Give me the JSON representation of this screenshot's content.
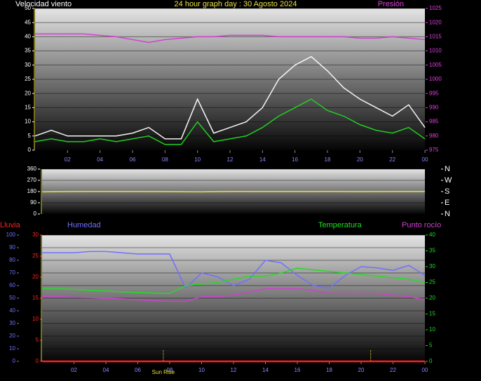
{
  "chart_data": [
    {
      "type": "line",
      "title": "24 hour graph day : 30 Agosto 2024",
      "ylabel": "Velocidad viento",
      "y2label": "Presión",
      "x": [
        0,
        1,
        2,
        3,
        4,
        5,
        6,
        7,
        8,
        9,
        10,
        11,
        12,
        13,
        14,
        15,
        16,
        17,
        18,
        19,
        20,
        21,
        22,
        23,
        24
      ],
      "xlim": [
        0,
        24
      ],
      "xticks": [
        {
          "value": 2,
          "label": "02"
        },
        {
          "value": 4,
          "label": "04"
        },
        {
          "value": 6,
          "label": "06"
        },
        {
          "value": 8,
          "label": "08"
        },
        10,
        12,
        14,
        16,
        18,
        20,
        22,
        {
          "value": 24,
          "label": "00"
        }
      ],
      "ylim": [
        0,
        50
      ],
      "yticks": [
        0,
        5,
        10,
        15,
        20,
        25,
        30,
        35,
        40,
        45,
        50
      ],
      "ycolor": "#ffffff",
      "y2lim": [
        975,
        1025
      ],
      "y2ticks": [
        975,
        980,
        985,
        990,
        995,
        1000,
        1005,
        1010,
        1015,
        1020,
        1025
      ],
      "y2color": "#e040e0",
      "series": [
        {
          "color": "#f4f4f4",
          "values": [
            5,
            7,
            5,
            5,
            5,
            5,
            6,
            8,
            4,
            4,
            18,
            6,
            8,
            10,
            15,
            25,
            30,
            33,
            28,
            22,
            18,
            15,
            12,
            16,
            8
          ]
        },
        {
          "color": "#22cc22",
          "values": [
            3,
            4,
            3,
            3,
            4,
            3,
            4,
            5,
            2,
            2,
            10,
            3,
            4,
            5,
            8,
            12,
            15,
            18,
            14,
            12,
            9,
            7,
            6,
            8,
            4
          ]
        },
        {
          "color": "#d040d0",
          "axis": "y2",
          "values": [
            1016,
            1016,
            1016,
            1016,
            1015.5,
            1015,
            1014,
            1013,
            1014,
            1014.5,
            1015,
            1015,
            1015.5,
            1015.5,
            1015.5,
            1015,
            1015,
            1015,
            1015,
            1015,
            1014.5,
            1014.5,
            1015,
            1014.5,
            1014
          ]
        }
      ]
    },
    {
      "type": "line",
      "x": [
        0,
        2,
        4,
        6,
        8,
        10,
        12,
        14,
        16,
        18,
        20,
        22,
        24
      ],
      "xlim": [
        0,
        24
      ],
      "ylim": [
        0,
        360
      ],
      "yticks": [
        0,
        90,
        180,
        270,
        360
      ],
      "ycolor": "#ffffff",
      "y2lim": [
        0,
        360
      ],
      "y2ticks": [
        {
          "value": 0,
          "label": "N"
        },
        {
          "value": 90,
          "label": "E"
        },
        {
          "value": 180,
          "label": "S"
        },
        {
          "value": 270,
          "label": "W"
        },
        {
          "value": 360,
          "label": "N"
        }
      ],
      "y2color": "#ffffff",
      "series": [
        {
          "color": "#e8e040",
          "values": [
            178,
            180,
            181,
            180,
            179,
            178,
            181,
            180,
            180,
            181,
            179,
            180,
            180
          ]
        }
      ]
    },
    {
      "type": "line",
      "x": [
        0,
        1,
        2,
        3,
        4,
        5,
        6,
        7,
        8,
        9,
        10,
        11,
        12,
        13,
        14,
        15,
        16,
        17,
        18,
        19,
        20,
        21,
        22,
        23,
        24
      ],
      "xlim": [
        0,
        24
      ],
      "xticks": [
        {
          "value": 2,
          "label": "02"
        },
        {
          "value": 4,
          "label": "04"
        },
        {
          "value": 6,
          "label": "06"
        },
        {
          "value": 8,
          "label": "08"
        },
        10,
        12,
        14,
        16,
        18,
        20,
        22,
        {
          "value": 24,
          "label": "00"
        }
      ],
      "ylim": [
        0,
        100
      ],
      "yticks": [
        0,
        10,
        20,
        30,
        40,
        50,
        60,
        70,
        80,
        90,
        100
      ],
      "ycolor": "#7070ff",
      "y3lim": [
        0,
        30
      ],
      "y3ticks": [
        0,
        5,
        10,
        15,
        20,
        25,
        30
      ],
      "y3color": "#ff2020",
      "y2lim": [
        0,
        40
      ],
      "y2ticks": [
        0,
        5,
        10,
        15,
        20,
        25,
        30,
        35,
        40
      ],
      "y2color": "#22dd22",
      "sunrise": 7.6,
      "sunset": 20.6,
      "sunrise_label": "Sun Rise",
      "series": [
        {
          "name": "Lluvia",
          "color": "#ff2020",
          "axis": "y3",
          "values": [
            0,
            0,
            0,
            0,
            0,
            0,
            0,
            0,
            0,
            0,
            0,
            0,
            0,
            0,
            0,
            0,
            0,
            0,
            0,
            0,
            0,
            0,
            0,
            0,
            0
          ]
        },
        {
          "name": "Humedad",
          "color": "#7070ff",
          "values": [
            86,
            86,
            86,
            87,
            87,
            86,
            85,
            85,
            85,
            58,
            70,
            67,
            60,
            65,
            80,
            78,
            68,
            60,
            58,
            68,
            75,
            74,
            72,
            76,
            68
          ]
        },
        {
          "name": "Temperatura",
          "color": "#22dd22",
          "axis": "y2",
          "values": [
            23,
            23,
            22.8,
            22.5,
            22.3,
            22,
            21.8,
            21.6,
            21.5,
            24,
            24.5,
            25,
            26,
            27,
            27,
            28,
            29.5,
            29,
            28.5,
            28,
            27.5,
            27,
            26.5,
            26,
            25
          ]
        },
        {
          "name": "Punto rocío",
          "color": "#d040d0",
          "axis": "y2",
          "values": [
            20.6,
            20.5,
            20.3,
            20.2,
            20,
            19.8,
            19.5,
            19.2,
            19,
            19,
            20.5,
            20.5,
            21,
            22,
            23,
            23,
            23,
            22.5,
            21.5,
            21.5,
            21.5,
            21.5,
            21,
            20.5,
            19.5
          ]
        }
      ]
    }
  ]
}
